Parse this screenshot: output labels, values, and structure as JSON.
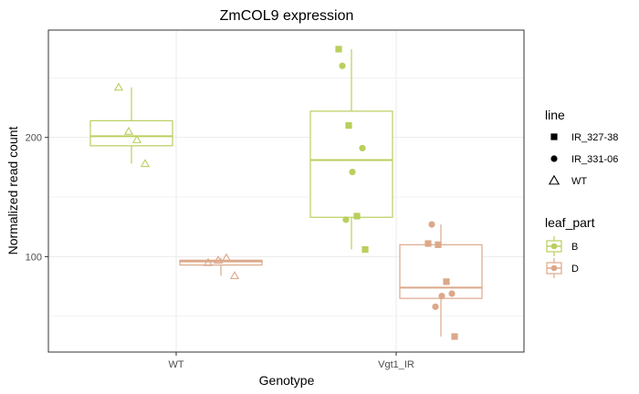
{
  "chart_data": {
    "type": "boxplot",
    "title": "ZmCOL9 expression",
    "xlabel": "Genotype",
    "ylabel": "Normalized read count",
    "categories": [
      "WT",
      "Vgt1_IR"
    ],
    "ylim": [
      20,
      290
    ],
    "yticks": [
      100,
      200
    ],
    "grid": true,
    "legend_placement": "right",
    "legends": {
      "line": {
        "title": "line",
        "items": [
          {
            "label": "IR_327-38",
            "shape": "square"
          },
          {
            "label": "IR_331-06",
            "shape": "circle"
          },
          {
            "label": "WT",
            "shape": "triangle"
          }
        ]
      },
      "leaf_part": {
        "title": "leaf_part",
        "items": [
          {
            "label": "B",
            "color": "#b9cf5e"
          },
          {
            "label": "D",
            "color": "#dca88a"
          }
        ]
      }
    },
    "groups": [
      {
        "category": "WT",
        "leaf_part": "B",
        "color": "#b9cf5e",
        "box": {
          "q1": 193,
          "median": 201,
          "q3": 214,
          "whisker_low": 178,
          "whisker_high": 242
        },
        "points": [
          {
            "y": 242,
            "line": "WT"
          },
          {
            "y": 205,
            "line": "WT"
          },
          {
            "y": 198,
            "line": "WT"
          },
          {
            "y": 178,
            "line": "WT"
          }
        ]
      },
      {
        "category": "WT",
        "leaf_part": "D",
        "color": "#dca88a",
        "box": {
          "q1": 93,
          "median": 96,
          "q3": 97,
          "whisker_low": 84,
          "whisker_high": 99
        },
        "points": [
          {
            "y": 95,
            "line": "WT"
          },
          {
            "y": 97,
            "line": "WT"
          },
          {
            "y": 99,
            "line": "WT"
          },
          {
            "y": 84,
            "line": "WT"
          }
        ]
      },
      {
        "category": "Vgt1_IR",
        "leaf_part": "B",
        "color": "#b9cf5e",
        "box": {
          "q1": 133,
          "median": 181,
          "q3": 222,
          "whisker_low": 106,
          "whisker_high": 274
        },
        "points": [
          {
            "y": 274,
            "line": "IR_327-38"
          },
          {
            "y": 210,
            "line": "IR_327-38"
          },
          {
            "y": 134,
            "line": "IR_327-38"
          },
          {
            "y": 106,
            "line": "IR_327-38"
          },
          {
            "y": 260,
            "line": "IR_331-06"
          },
          {
            "y": 191,
            "line": "IR_331-06"
          },
          {
            "y": 171,
            "line": "IR_331-06"
          },
          {
            "y": 131,
            "line": "IR_331-06"
          }
        ]
      },
      {
        "category": "Vgt1_IR",
        "leaf_part": "D",
        "color": "#dca88a",
        "box": {
          "q1": 65,
          "median": 74,
          "q3": 110,
          "whisker_low": 33,
          "whisker_high": 127
        },
        "points": [
          {
            "y": 111,
            "line": "IR_327-38"
          },
          {
            "y": 110,
            "line": "IR_327-38"
          },
          {
            "y": 79,
            "line": "IR_327-38"
          },
          {
            "y": 33,
            "line": "IR_327-38"
          },
          {
            "y": 127,
            "line": "IR_331-06"
          },
          {
            "y": 69,
            "line": "IR_331-06"
          },
          {
            "y": 67,
            "line": "IR_331-06"
          },
          {
            "y": 58,
            "line": "IR_331-06"
          }
        ]
      }
    ]
  }
}
